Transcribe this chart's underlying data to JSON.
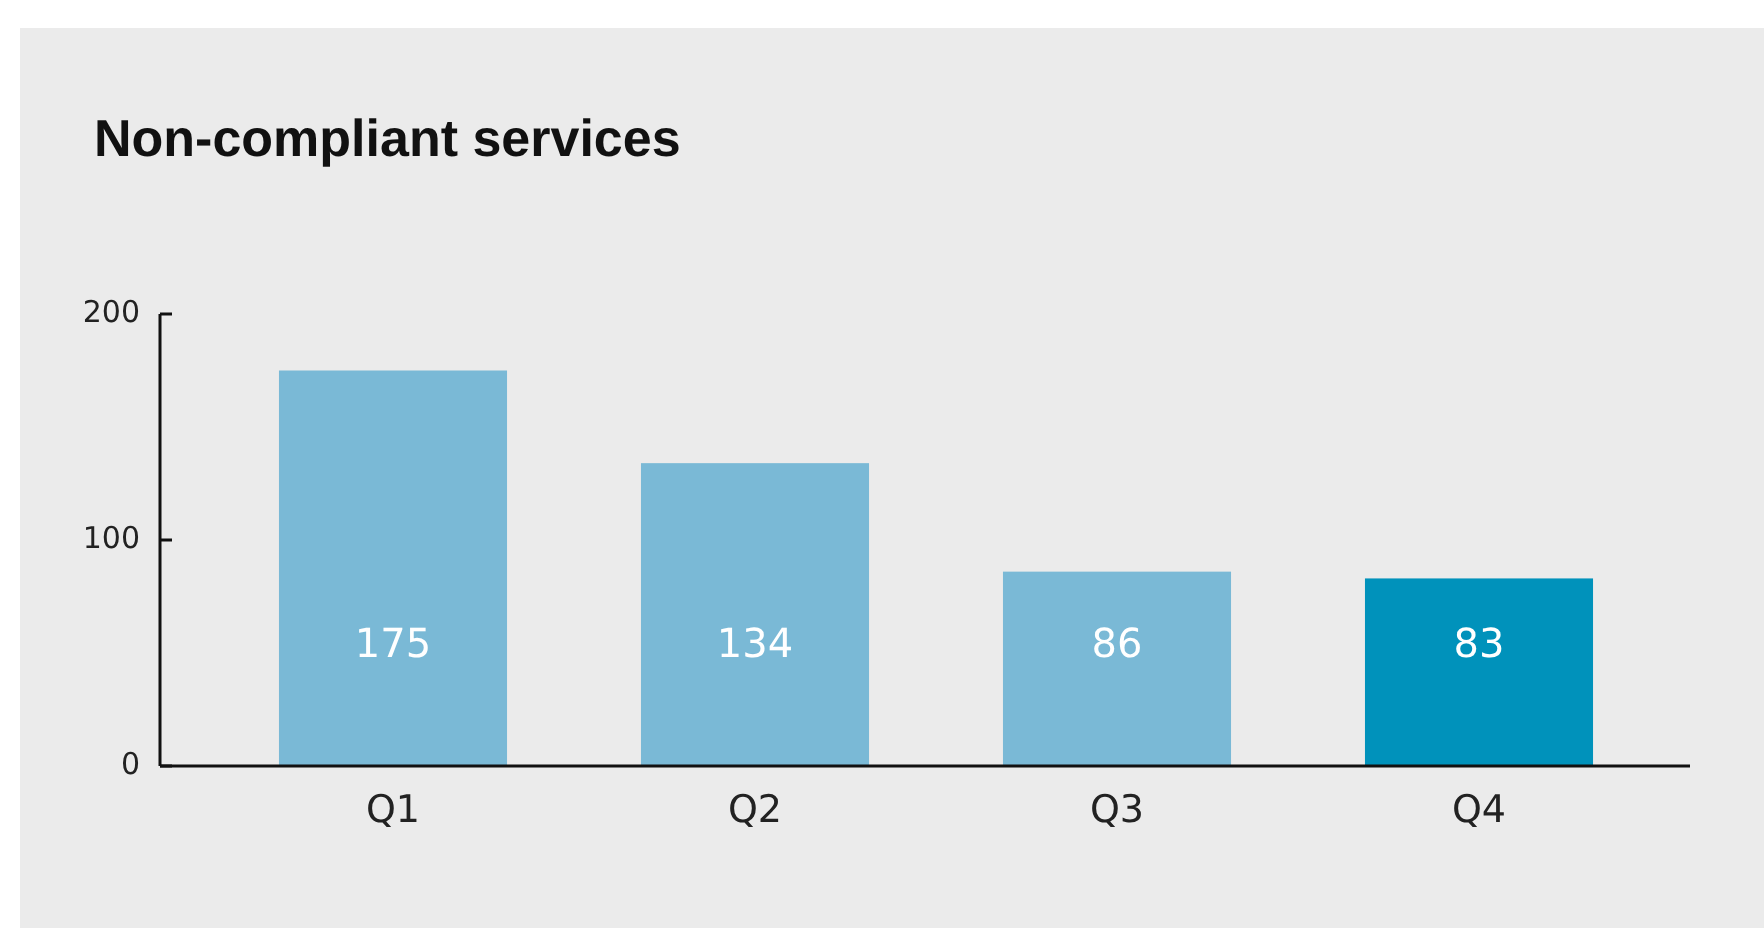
{
  "chart_data": {
    "type": "bar",
    "title": "Non-compliant services",
    "categories": [
      "Q1",
      "Q2",
      "Q3",
      "Q4"
    ],
    "values": [
      175,
      134,
      86,
      83
    ],
    "colors": [
      "#7ab9d6",
      "#7ab9d6",
      "#7ab9d6",
      "#0092bb"
    ],
    "ylim": [
      0,
      200
    ],
    "yticks": [
      0,
      100,
      200
    ],
    "data_labels": true,
    "grid": false
  }
}
